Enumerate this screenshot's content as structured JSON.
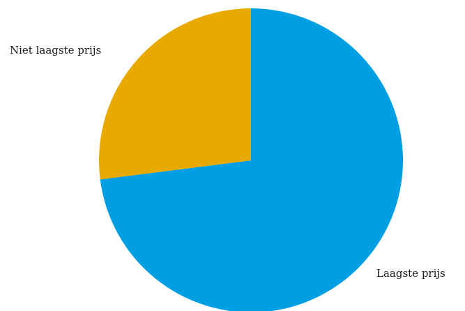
{
  "chart_data": {
    "type": "pie",
    "title": "",
    "start_angle_deg": 0,
    "direction": "clockwise",
    "slices": [
      {
        "label": "Laagste prijs",
        "value": 73,
        "color": "#009fe3"
      },
      {
        "label": "Niet laagste prijs",
        "value": 27,
        "color": "#e8a900"
      }
    ]
  }
}
